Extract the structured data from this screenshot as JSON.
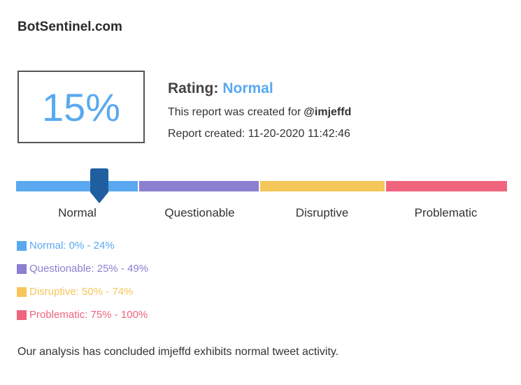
{
  "header": {
    "site": "BotSentinel.com"
  },
  "score": "15%",
  "rating": {
    "label": "Rating:",
    "value": "Normal"
  },
  "created_for": {
    "text": "This report was created for",
    "handle": "@imjeffd"
  },
  "created_at": "Report created: 11-20-2020 11:42:46",
  "scale": [
    "Normal",
    "Questionable",
    "Disruptive",
    "Problematic"
  ],
  "legend": [
    "Normal: 0% - 24%",
    "Questionable: 25% - 49%",
    "Disruptive: 50% - 74%",
    "Problematic: 75% - 100%"
  ],
  "conclusion": "Our analysis has concluded imjeffd exhibits normal tweet activity."
}
